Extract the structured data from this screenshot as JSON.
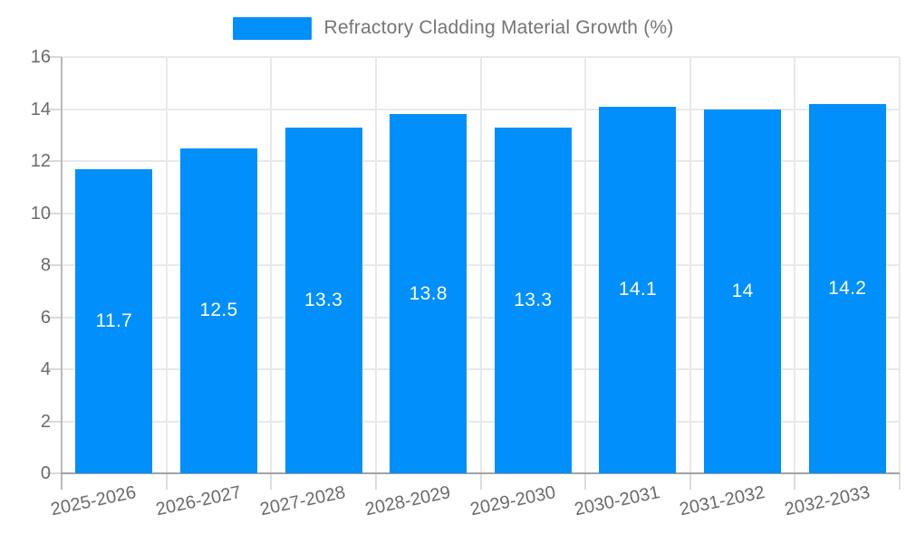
{
  "legend": {
    "label": "Refractory Cladding Material Growth (%)",
    "swatch_color": "#008FFB"
  },
  "colors": {
    "bar": "#008FFB",
    "legend_text": "#757575",
    "axis_text": "#6b6b6b",
    "value_label_text": "#ffffff"
  },
  "chart_data": {
    "type": "bar",
    "title": "Refractory Cladding Material Growth (%)",
    "categories": [
      "2025-2026",
      "2026-2027",
      "2027-2028",
      "2028-2029",
      "2029-2030",
      "2030-2031",
      "2031-2032",
      "2032-2033"
    ],
    "series": [
      {
        "name": "Refractory Cladding Material Growth (%)",
        "values": [
          11.7,
          12.5,
          13.3,
          13.8,
          13.3,
          14.1,
          14,
          14.2
        ]
      }
    ],
    "value_labels": [
      "11.7",
      "12.5",
      "13.3",
      "13.8",
      "13.3",
      "14.1",
      "14",
      "14.2"
    ],
    "xlabel": "",
    "ylabel": "",
    "ylim": [
      0,
      16
    ],
    "yticks": [
      0,
      2,
      4,
      6,
      8,
      10,
      12,
      14,
      16
    ],
    "ytick_labels": [
      "0",
      "2",
      "4",
      "6",
      "8",
      "10",
      "12",
      "14",
      "16"
    ],
    "grid": true,
    "legend_position": "top",
    "bar_color": "#008FFB"
  }
}
